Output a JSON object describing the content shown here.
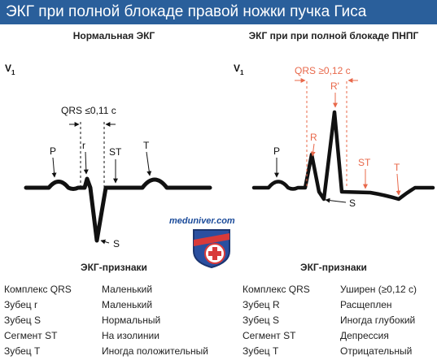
{
  "title": "ЭКГ при полной блокаде правой ножки пучка Гиса",
  "left_panel": {
    "title": "Нормальная ЭКГ",
    "lead": "V",
    "lead_sub": "1",
    "labels": {
      "qrs": "QRS ≤0,11 с",
      "p": "P",
      "r": "r",
      "st": "ST",
      "t": "T",
      "s": "S"
    }
  },
  "right_panel": {
    "title": "ЭКГ при при полной блокаде ПНПГ",
    "lead": "V",
    "lead_sub": "1",
    "labels": {
      "qrs": "QRS ≥0,12 с",
      "p": "P",
      "r": "R",
      "r_prime": "R'",
      "st": "ST",
      "t": "T",
      "s": "S"
    }
  },
  "logo": {
    "text": "meduniver.com"
  },
  "signs": {
    "left_title": "ЭКГ-признаки",
    "right_title": "ЭКГ-признаки",
    "left_rows": [
      {
        "name": "Комплекс QRS",
        "value": "Маленький"
      },
      {
        "name": "Зубец r",
        "value": "Маленький"
      },
      {
        "name": "Зубец S",
        "value": "Нормальный"
      },
      {
        "name": "Сегмент ST",
        "value": "На изолинии"
      },
      {
        "name": "Зубец T",
        "value": "Иногда положительный"
      }
    ],
    "right_rows": [
      {
        "name": "Комплекс QRS",
        "value": "Уширен (≥0,12 с)"
      },
      {
        "name": "Зубец R",
        "value": "Расщеплен"
      },
      {
        "name": "Зубец S",
        "value": "Иногда глубокий"
      },
      {
        "name": "Сегмент ST",
        "value": "Депрессия"
      },
      {
        "name": "Зубец T",
        "value": "Отрицательный"
      }
    ]
  },
  "colors": {
    "title_bar": "#2a5f9b",
    "annotation_red": "#e8684a",
    "trace": "#111111"
  }
}
